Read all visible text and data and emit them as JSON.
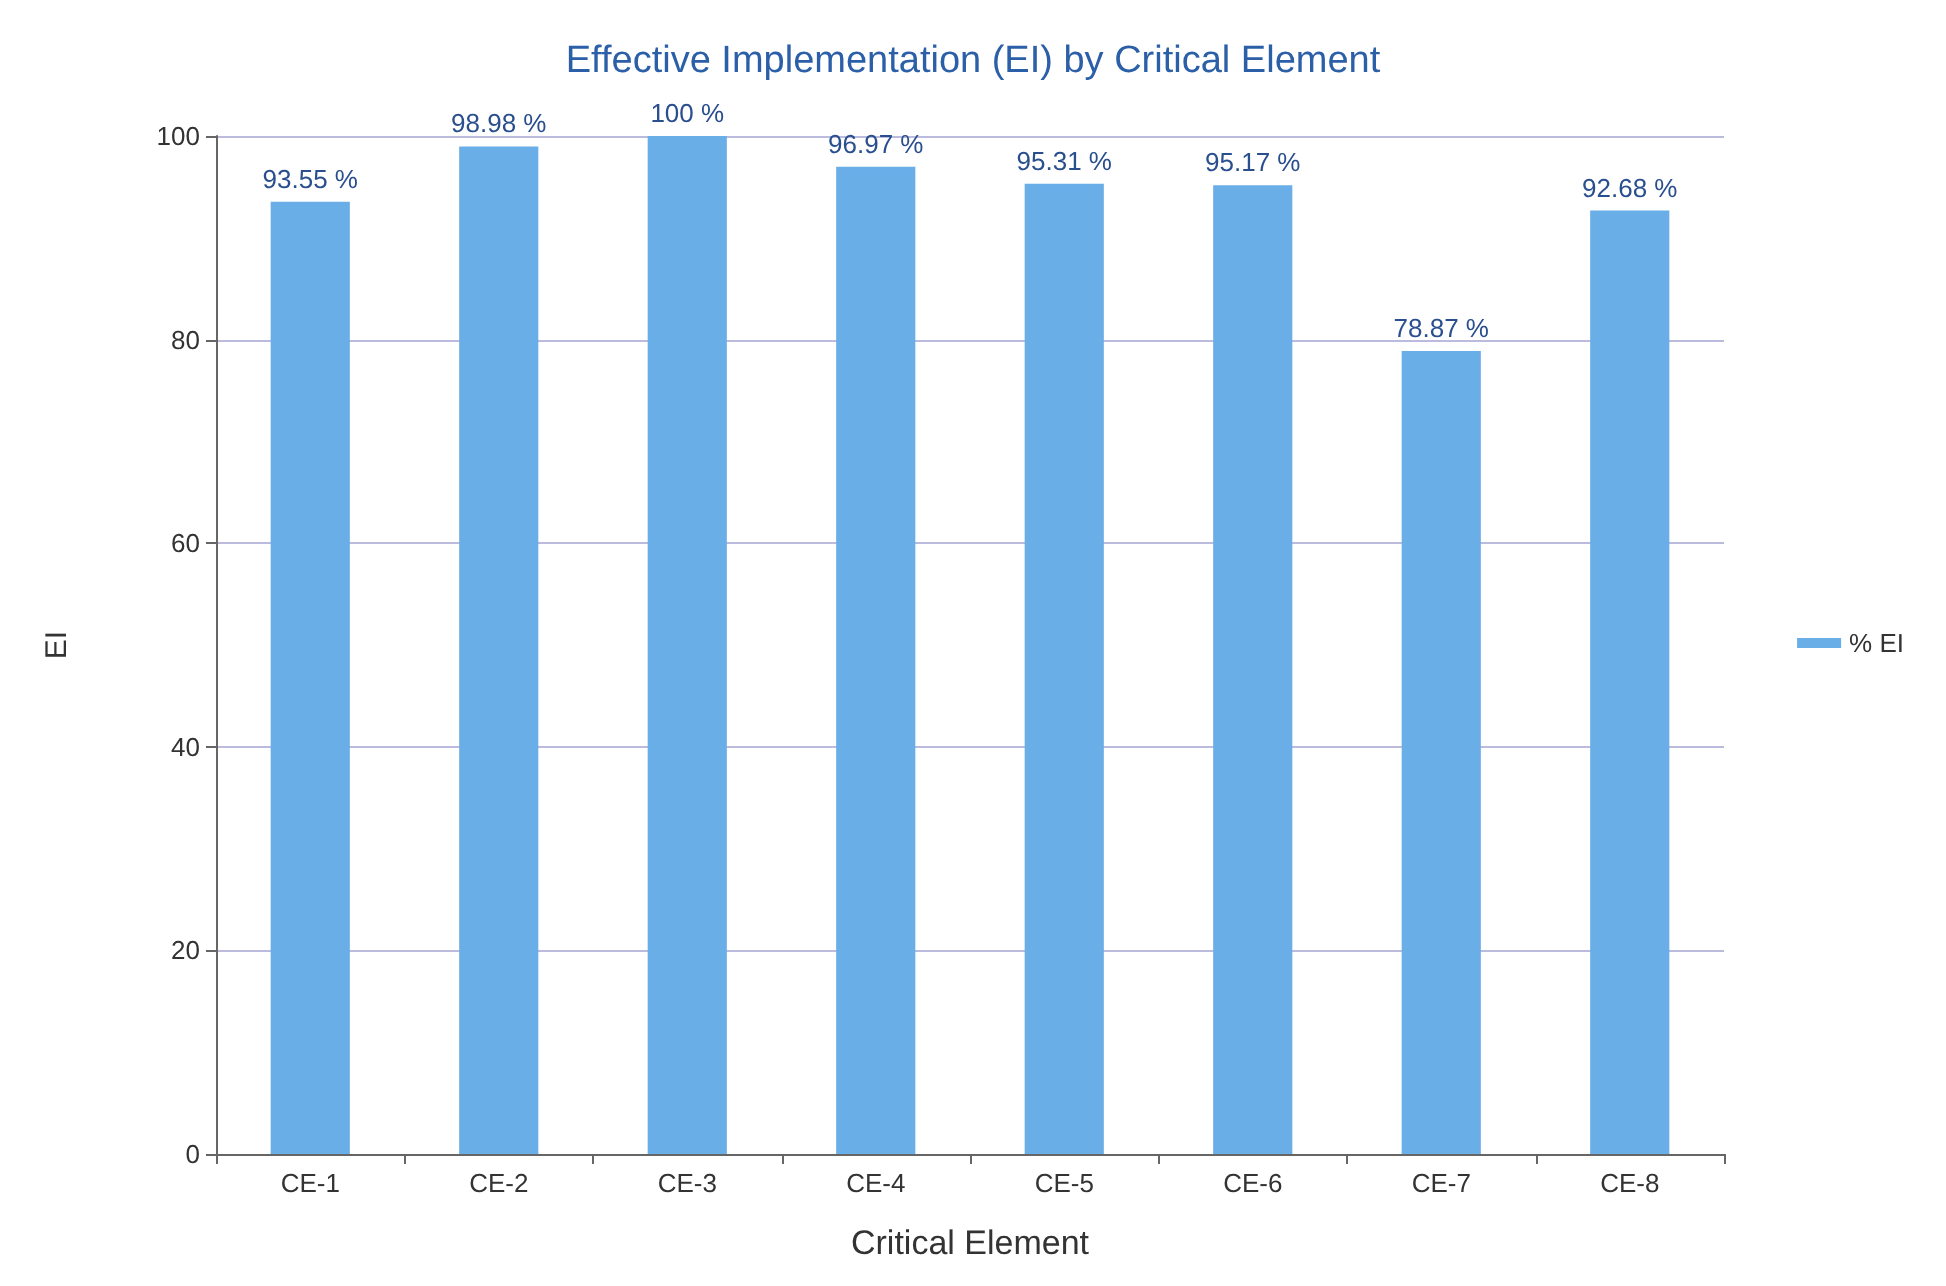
{
  "chart_data": {
    "type": "bar",
    "title": "Effective Implementation (EI) by Critical Element",
    "xlabel": "Critical Element",
    "ylabel": "EI",
    "categories": [
      "CE-1",
      "CE-2",
      "CE-3",
      "CE-4",
      "CE-5",
      "CE-6",
      "CE-7",
      "CE-8"
    ],
    "series": [
      {
        "name": "% EI",
        "color": "#6aaee8",
        "values": [
          93.55,
          98.98,
          100,
          96.97,
          95.31,
          95.17,
          78.87,
          92.68
        ],
        "value_labels": [
          "93.55 %",
          "98.98 %",
          "100 %",
          "96.97 %",
          "95.31 %",
          "95.17 %",
          "78.87 %",
          "92.68 %"
        ]
      }
    ],
    "ylim": [
      0,
      100
    ],
    "yticks": [
      0,
      20,
      40,
      60,
      80,
      100
    ],
    "grid": "y",
    "legend": "right"
  }
}
